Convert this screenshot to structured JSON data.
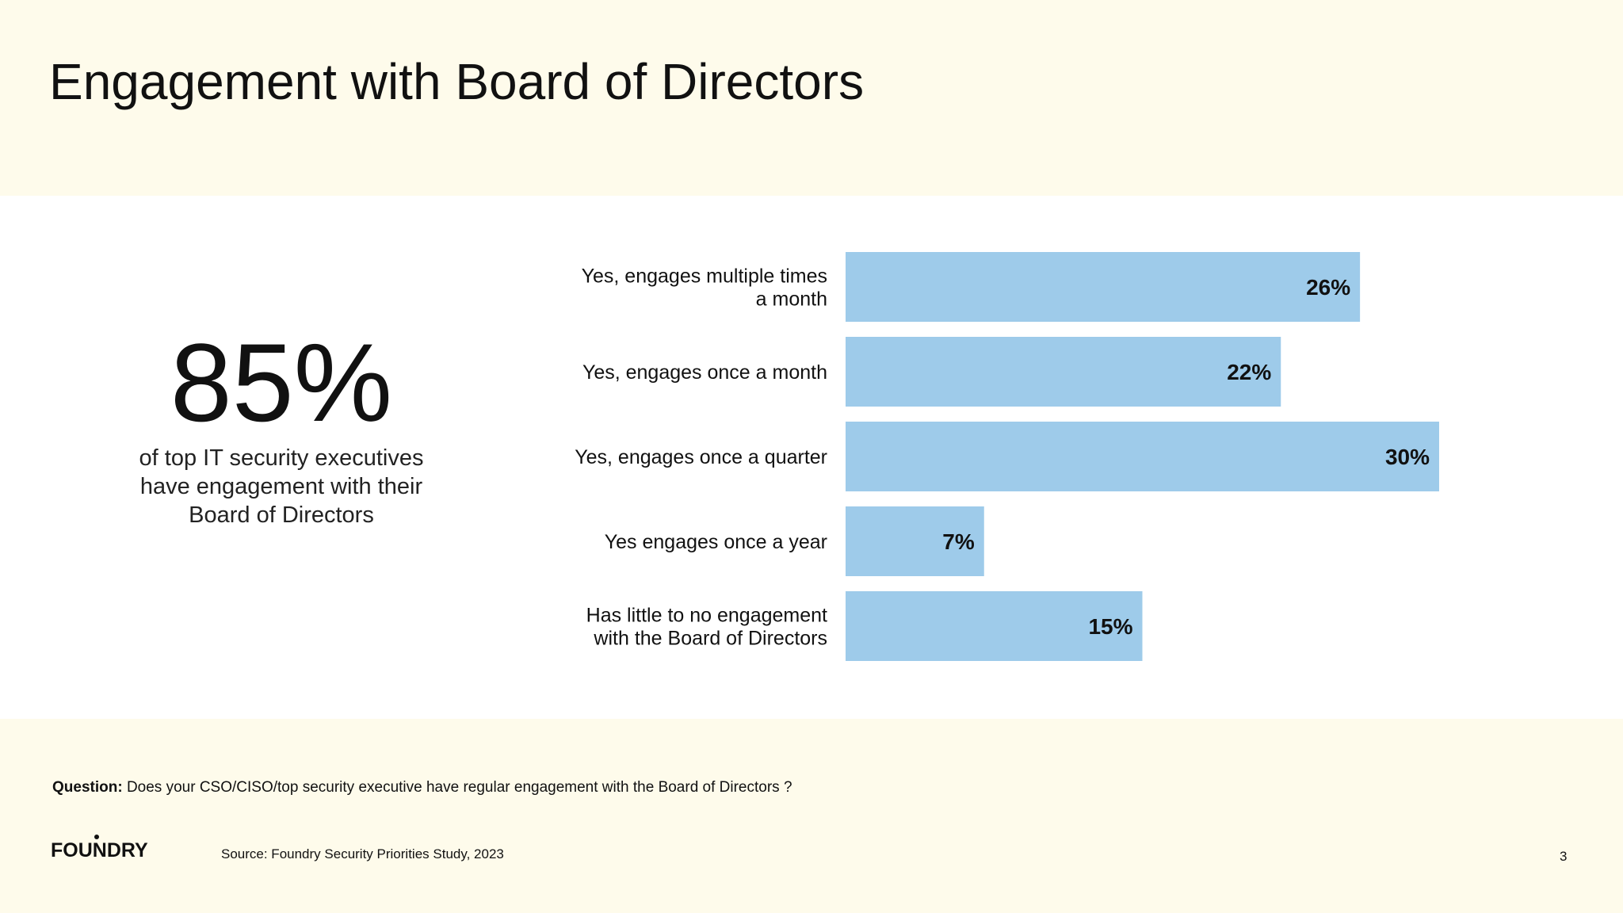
{
  "title": "Engagement with Board of Directors",
  "stat": {
    "value": "85%",
    "caption_lines": [
      "of top IT security executives",
      "have engagement with their",
      "Board of Directors"
    ]
  },
  "chart_data": {
    "type": "bar",
    "orientation": "horizontal",
    "categories": [
      [
        "Yes, engages multiple times",
        "a month"
      ],
      [
        "Yes, engages once a month"
      ],
      [
        "Yes, engages once a quarter"
      ],
      [
        "Yes engages once a year"
      ],
      [
        "Has little to no engagement",
        "with the Board of Directors"
      ]
    ],
    "values": [
      26,
      22,
      30,
      7,
      15
    ],
    "value_labels": [
      "26%",
      "22%",
      "30%",
      "7%",
      "15%"
    ],
    "unit": "%",
    "xlim": [
      0,
      30
    ],
    "grid": false,
    "legend": "none",
    "bar_color": "#9ecbea"
  },
  "footer": {
    "question_label": "Question:",
    "question_text": " Does your CSO/CISO/top security executive have regular engagement with the Board of Directors ?",
    "source": "Source: Foundry Security Priorities Study, 2023",
    "page_number": "3",
    "logo_text": "FOUNDRY"
  }
}
